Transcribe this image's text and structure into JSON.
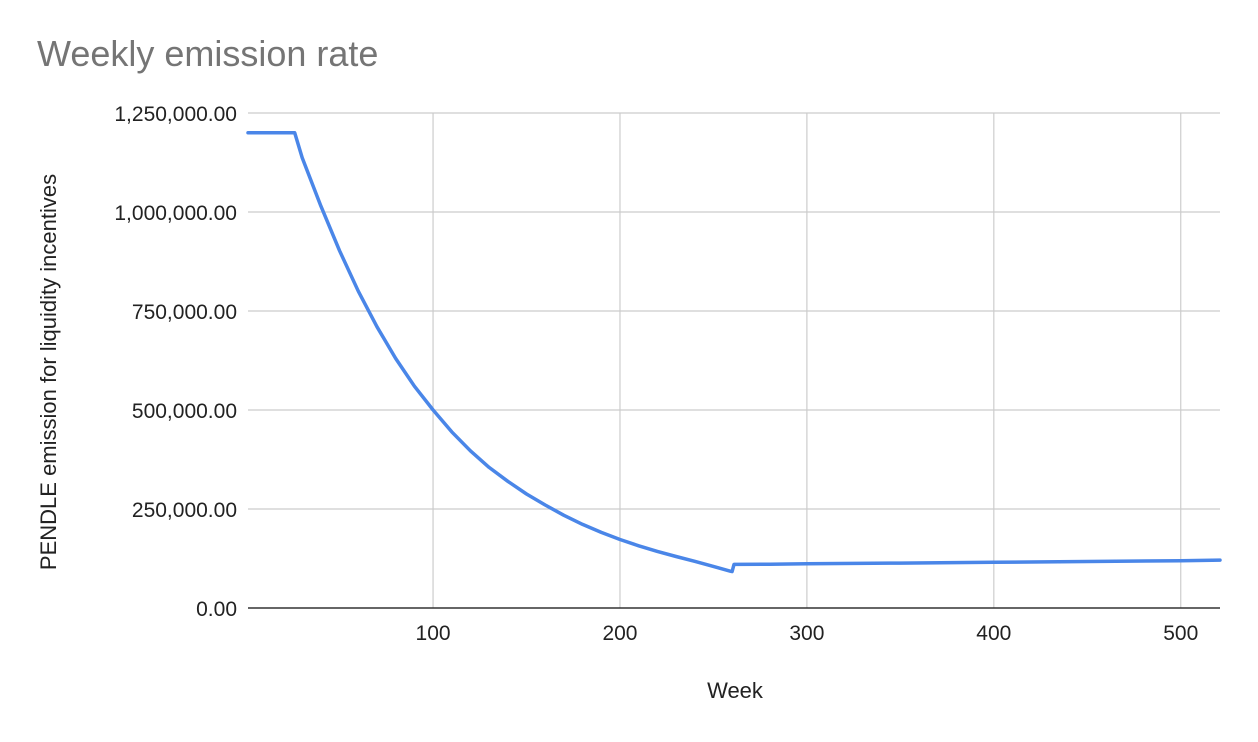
{
  "chart_data": {
    "type": "line",
    "title": "Weekly emission rate",
    "xlabel": "Week",
    "ylabel": "PENDLE emission for liquidity incentives",
    "xlim": [
      1,
      521
    ],
    "ylim": [
      0,
      1250000
    ],
    "x_ticks": [
      100,
      200,
      300,
      400,
      500
    ],
    "y_ticks": [
      0,
      250000,
      500000,
      750000,
      1000000,
      1250000
    ],
    "y_tick_labels": [
      "0.00",
      "250,000.00",
      "500,000.00",
      "750,000.00",
      "1,000,000.00",
      "1,250,000.00"
    ],
    "grid": true,
    "legend": "none",
    "line_color": "#4a86e8",
    "series": [
      {
        "x": [
          1,
          26,
          30,
          40,
          50,
          60,
          70,
          80,
          90,
          100,
          110,
          120,
          130,
          140,
          150,
          160,
          170,
          180,
          190,
          200,
          210,
          220,
          230,
          240,
          250,
          259,
          260,
          261,
          280,
          300,
          350,
          400,
          450,
          500,
          521
        ],
        "values": [
          1200000,
          1200000,
          1137000,
          1015000,
          902000,
          800000,
          710000,
          630000,
          560000,
          500000,
          445000,
          397000,
          355000,
          320000,
          288000,
          260000,
          234000,
          211000,
          191000,
          173000,
          157000,
          143000,
          130000,
          118000,
          105000,
          93000,
          92000,
          110000,
          110500,
          111500,
          113500,
          115500,
          117500,
          119500,
          121000
        ]
      }
    ]
  }
}
